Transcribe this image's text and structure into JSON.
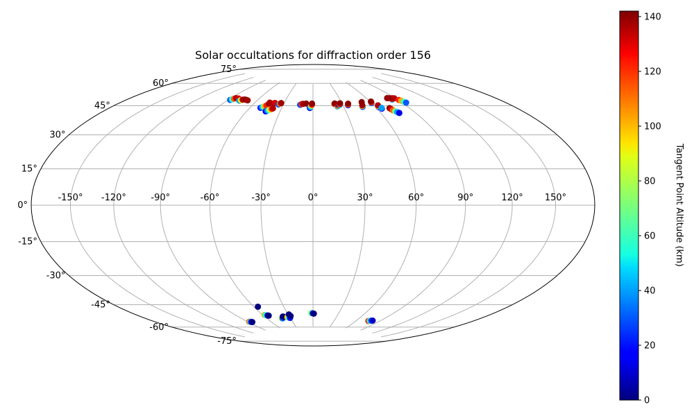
{
  "chart_data": {
    "type": "scatter",
    "projection": "hammer",
    "title": "Solar occultations for diffraction order 156",
    "xlabel": "",
    "ylabel": "",
    "grid": true,
    "lon_ticks": [
      -150,
      -120,
      -90,
      -60,
      -30,
      0,
      30,
      60,
      90,
      120,
      150
    ],
    "lon_tick_labels": [
      "-150°",
      "-120°",
      "-90°",
      "-60°",
      "-30°",
      "0°",
      "30°",
      "60°",
      "90°",
      "120°",
      "150°"
    ],
    "lat_ticks": [
      75,
      60,
      45,
      30,
      15,
      0,
      -15,
      -30,
      -45,
      -60,
      -75
    ],
    "lat_tick_labels": [
      "75°",
      "60°",
      "45°",
      "30°",
      "15°",
      "0°",
      "-15°",
      "-30°",
      "-45°",
      "-60°",
      "-75°"
    ],
    "lat_range": [
      -75,
      75
    ],
    "colorbar": {
      "label": "Tangent Point Altitude (km)",
      "cmap": "jet",
      "vmin": 0,
      "vmax": 142,
      "ticks": [
        0,
        20,
        40,
        60,
        80,
        100,
        120,
        140
      ],
      "tick_labels": [
        "0",
        "20",
        "40",
        "60",
        "80",
        "100",
        "120",
        "140"
      ]
    },
    "series": [
      {
        "name": "occultation points",
        "points": [
          [
            -88,
            60.5,
            30
          ],
          [
            -87,
            61,
            60
          ],
          [
            -86,
            61.5,
            110
          ],
          [
            -85,
            62,
            135
          ],
          [
            -82,
            62,
            130
          ],
          [
            -78,
            60.8,
            40
          ],
          [
            -77,
            61.2,
            90
          ],
          [
            -76,
            61.6,
            135
          ],
          [
            -74,
            61.8,
            138
          ],
          [
            -72,
            61.7,
            140
          ],
          [
            -70,
            61.5,
            137
          ],
          [
            -50,
            57.5,
            20
          ],
          [
            -49,
            58,
            40
          ],
          [
            -48,
            58.4,
            70
          ],
          [
            -47,
            58.8,
            100
          ],
          [
            -46,
            59.2,
            120
          ],
          [
            -45,
            60.5,
            140
          ],
          [
            -43,
            55.5,
            15
          ],
          [
            -42,
            56,
            35
          ],
          [
            -41,
            56.4,
            60
          ],
          [
            -40,
            56.8,
            90
          ],
          [
            -39,
            57.2,
            115
          ],
          [
            -38,
            57.6,
            135
          ],
          [
            -45,
            61.2,
            135
          ],
          [
            -40,
            61,
            140
          ],
          [
            -39.5,
            61.2,
            130
          ],
          [
            -35,
            60.3,
            30
          ],
          [
            -34,
            60.8,
            110
          ],
          [
            -33,
            61.3,
            138
          ],
          [
            -13,
            60.5,
            30
          ],
          [
            -11.5,
            61,
            120
          ],
          [
            -10,
            61.2,
            138
          ],
          [
            -7,
            61.4,
            140
          ],
          [
            -3,
            58.5,
            15
          ],
          [
            -2.5,
            59,
            35
          ],
          [
            -2,
            59.6,
            60
          ],
          [
            -1.5,
            60.2,
            100
          ],
          [
            -1,
            60.8,
            125
          ],
          [
            -1,
            61.4,
            140
          ],
          [
            22,
            61,
            120
          ],
          [
            22.5,
            61.3,
            140
          ],
          [
            24,
            59.3,
            40
          ],
          [
            24.5,
            59.8,
            100
          ],
          [
            25,
            60.4,
            138
          ],
          [
            27,
            60.3,
            40
          ],
          [
            27.5,
            60.8,
            120
          ],
          [
            28,
            61.3,
            140
          ],
          [
            35,
            59.8,
            20
          ],
          [
            35.5,
            60.3,
            110
          ],
          [
            36,
            60.8,
            140
          ],
          [
            48,
            58.2,
            30
          ],
          [
            48.5,
            58.8,
            100
          ],
          [
            49,
            59.3,
            138
          ],
          [
            51,
            61.3,
            140
          ],
          [
            60,
            60.2,
            30
          ],
          [
            60.5,
            60.7,
            115
          ],
          [
            61,
            61.2,
            140
          ],
          [
            63,
            57.5,
            20
          ],
          [
            63.5,
            58,
            90
          ],
          [
            64,
            58.5,
            135
          ],
          [
            64.5,
            56.3,
            15
          ],
          [
            65,
            56.8,
            40
          ],
          [
            72,
            56.2,
            140
          ],
          [
            72.5,
            55.5,
            130
          ],
          [
            73,
            54.7,
            110
          ],
          [
            74,
            54,
            70
          ],
          [
            75,
            53.4,
            40
          ],
          [
            76,
            52.8,
            15
          ],
          [
            82,
            62.2,
            140
          ],
          [
            84,
            62,
            138
          ],
          [
            85,
            61,
            40
          ],
          [
            86,
            61.4,
            120
          ],
          [
            87,
            61.8,
            140
          ],
          [
            89,
            61.6,
            135
          ],
          [
            91,
            60.3,
            120
          ],
          [
            92,
            59.6,
            100
          ],
          [
            93,
            58.8,
            60
          ],
          [
            94,
            58.2,
            30
          ],
          [
            -88,
            -68.5,
            110
          ],
          [
            -87,
            -68.7,
            60
          ],
          [
            -86,
            -68.8,
            20
          ],
          [
            -85,
            -69,
            0
          ],
          [
            -56,
            -60,
            0
          ],
          [
            -58,
            -65.5,
            100
          ],
          [
            -57,
            -65.7,
            60
          ],
          [
            -55,
            -66,
            10
          ],
          [
            -54,
            -66.2,
            0
          ],
          [
            -41,
            -68.5,
            80
          ],
          [
            -40,
            -68.6,
            30
          ],
          [
            -38,
            -67.4,
            0
          ],
          [
            -37,
            -67.6,
            0
          ],
          [
            -33,
            -68,
            100
          ],
          [
            -32,
            -68.2,
            80
          ],
          [
            -31,
            -68.4,
            50
          ],
          [
            -30,
            -68.6,
            20
          ],
          [
            -29,
            -66.2,
            0
          ],
          [
            -28,
            -67.3,
            0
          ],
          [
            -2,
            -65.6,
            80
          ],
          [
            -1,
            -65.7,
            50
          ],
          [
            0,
            -65.8,
            10
          ],
          [
            1,
            -66,
            0
          ],
          [
            76,
            -68.8,
            120
          ],
          [
            77.5,
            -68.6,
            60
          ],
          [
            79,
            -68.4,
            30
          ],
          [
            80.5,
            -68.2,
            10
          ]
        ]
      }
    ]
  }
}
